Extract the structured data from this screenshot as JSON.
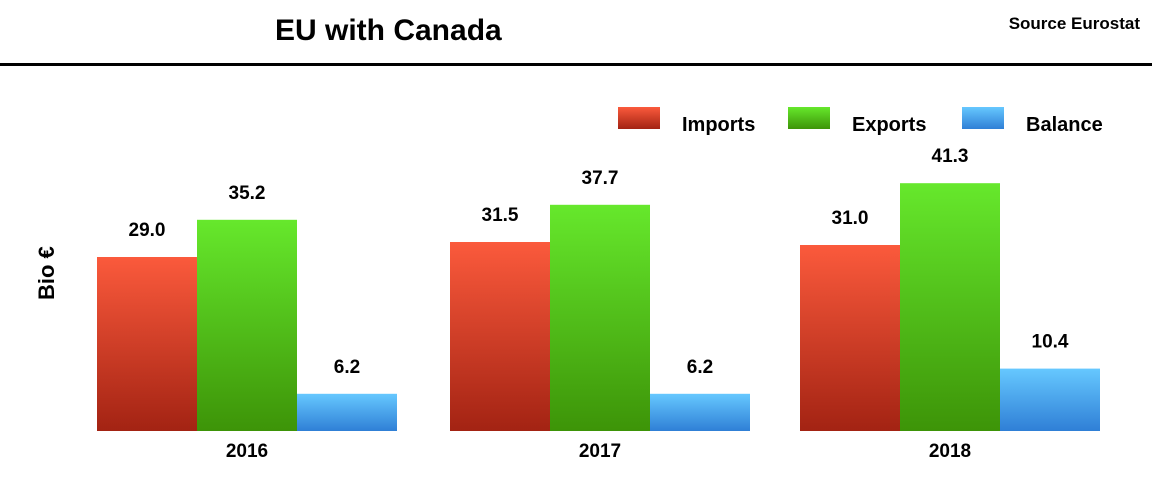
{
  "header": {
    "title": "EU with Canada",
    "source": "Source Eurostat"
  },
  "chart_data": {
    "type": "bar",
    "categories": [
      "2016",
      "2017",
      "2018"
    ],
    "series": [
      {
        "name": "Imports",
        "values": [
          29.0,
          31.5,
          31.0
        ],
        "color": "#e8432b"
      },
      {
        "name": "Exports",
        "values": [
          35.2,
          37.7,
          41.3
        ],
        "color": "#55cc1e"
      },
      {
        "name": "Balance",
        "values": [
          6.2,
          6.2,
          10.4
        ],
        "color": "#4aa8ee"
      }
    ],
    "ylabel": "Bio  €",
    "legend_position": "top-right",
    "grid": false
  }
}
